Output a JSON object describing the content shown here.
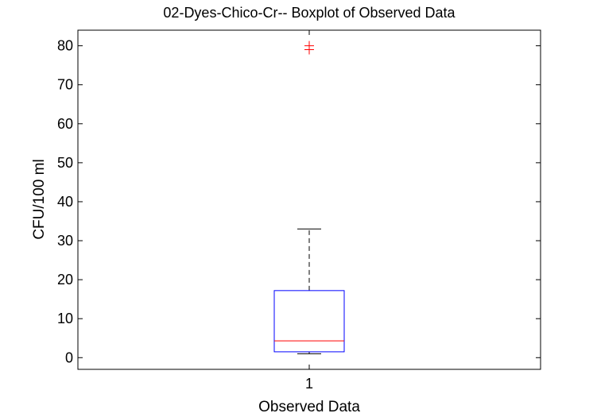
{
  "chart_data": {
    "type": "boxplot",
    "title": "02-Dyes-Chico-Cr-- Boxplot of Observed Data",
    "xlabel": "Observed Data",
    "ylabel": "CFU/100 ml",
    "categories": [
      "1"
    ],
    "ylim": [
      -3,
      84
    ],
    "yticks": [
      0,
      10,
      20,
      30,
      40,
      50,
      60,
      70,
      80
    ],
    "grid": false,
    "boxes": [
      {
        "category": "1",
        "whisker_low": 1,
        "q1": 1.5,
        "median": 4.3,
        "q3": 17.2,
        "whisker_high": 33,
        "outliers": [
          79,
          80
        ]
      }
    ],
    "colors": {
      "box": "#0000ff",
      "median": "#ff0000",
      "whisker": "#000000",
      "outlier": "#ff0000"
    }
  }
}
